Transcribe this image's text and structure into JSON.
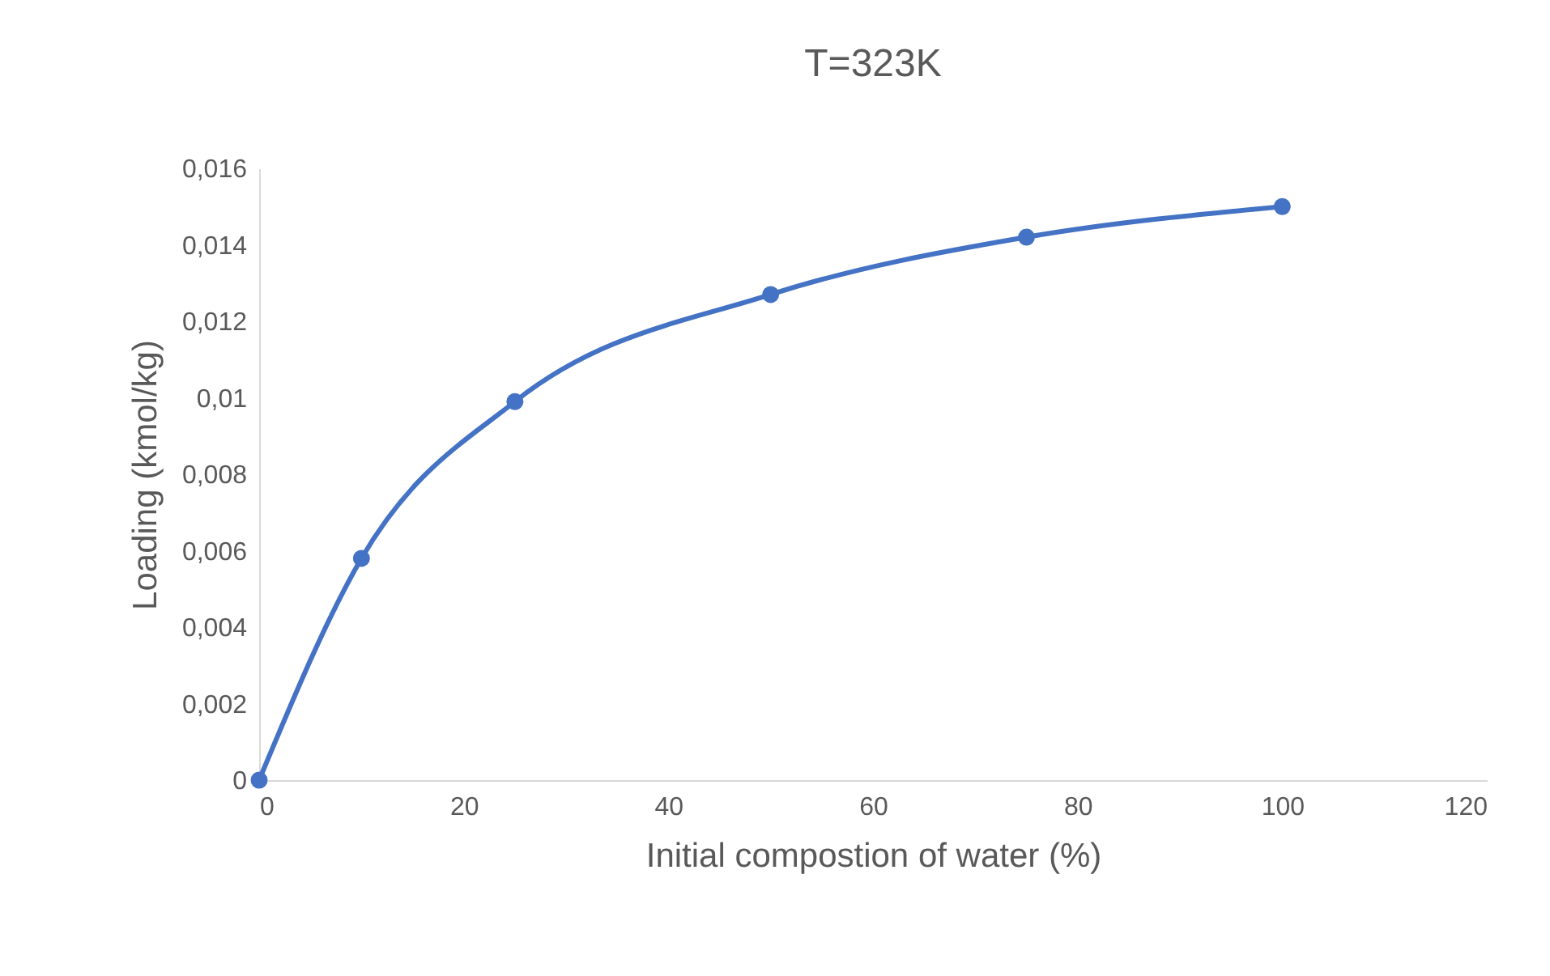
{
  "chart_data": {
    "type": "line",
    "title": "T=323K",
    "xlabel": "Initial compostion of water (%)",
    "ylabel": "Loading (kmol/kg)",
    "x": [
      0,
      10,
      25,
      50,
      75,
      100
    ],
    "series": [
      {
        "color": "#4472c4",
        "values": [
          0,
          0.0058,
          0.0099,
          0.0127,
          0.0142,
          0.015
        ]
      }
    ],
    "xlim": [
      0,
      120
    ],
    "xticks": [
      0,
      20,
      40,
      60,
      80,
      100,
      120
    ],
    "ylim": [
      0,
      0.016
    ],
    "yticks": [
      0,
      {
        "value": 0.002,
        "label": "0,002"
      },
      {
        "value": 0.004,
        "label": "0,004"
      },
      {
        "value": 0.006,
        "label": "0,006"
      },
      {
        "value": 0.008,
        "label": "0,008"
      },
      {
        "value": 0.01,
        "label": "0,01"
      },
      {
        "value": 0.012,
        "label": "0,012"
      },
      {
        "value": 0.014,
        "label": "0,014"
      },
      {
        "value": 0.016,
        "label": "0,016"
      }
    ],
    "grid": false,
    "marker": "circle",
    "line_style": "solid"
  }
}
